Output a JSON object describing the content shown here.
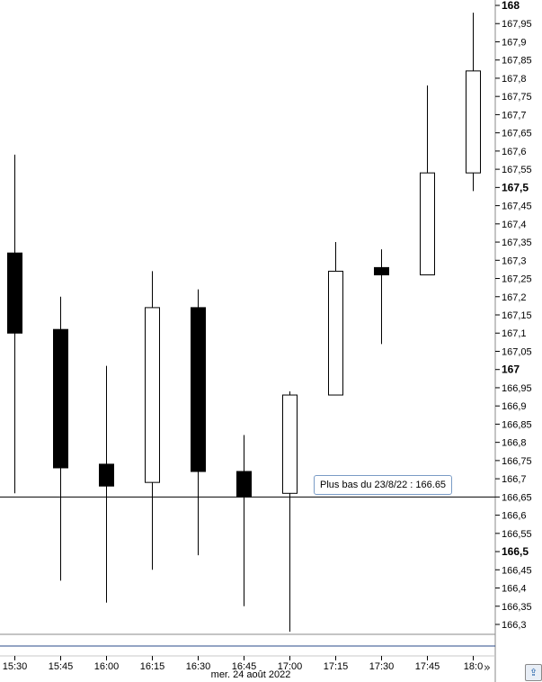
{
  "chart_data": {
    "type": "candlestick",
    "x": [
      "15:30",
      "15:45",
      "16:00",
      "16:15",
      "16:30",
      "16:45",
      "17:00",
      "17:15",
      "17:30",
      "17:45",
      "18:0"
    ],
    "date_label": "mer. 24 août 2022",
    "candles": [
      {
        "open": 167.32,
        "high": 167.59,
        "low": 166.66,
        "close": 167.1
      },
      {
        "open": 167.11,
        "high": 167.2,
        "low": 166.42,
        "close": 166.73
      },
      {
        "open": 166.74,
        "high": 167.01,
        "low": 166.36,
        "close": 166.68
      },
      {
        "open": 166.69,
        "high": 167.27,
        "low": 166.45,
        "close": 167.17
      },
      {
        "open": 167.17,
        "high": 167.22,
        "low": 166.49,
        "close": 166.72
      },
      {
        "open": 166.72,
        "high": 166.82,
        "low": 166.35,
        "close": 166.65
      },
      {
        "open": 166.66,
        "high": 166.94,
        "low": 166.28,
        "close": 166.93
      },
      {
        "open": 166.93,
        "high": 167.35,
        "low": 166.93,
        "close": 167.27
      },
      {
        "open": 167.28,
        "high": 167.33,
        "low": 167.07,
        "close": 167.26
      },
      {
        "open": 167.26,
        "high": 167.78,
        "low": 167.26,
        "close": 167.54
      },
      {
        "open": 167.54,
        "high": 167.98,
        "low": 167.49,
        "close": 167.82
      }
    ],
    "y_ticks": [
      "168",
      "167,95",
      "167,9",
      "167,85",
      "167,8",
      "167,75",
      "167,7",
      "167,65",
      "167,6",
      "167,55",
      "167,5",
      "167,45",
      "167,4",
      "167,35",
      "167,3",
      "167,25",
      "167,2",
      "167,15",
      "167,1",
      "167,05",
      "167",
      "166,95",
      "166,9",
      "166,85",
      "166,8",
      "166,75",
      "166,7",
      "166,65",
      "166,6",
      "166,55",
      "166,5",
      "166,45",
      "166,4",
      "166,35",
      "166,3"
    ],
    "y_bold_ticks": [
      "168",
      "167,5",
      "167",
      "166,5"
    ],
    "ylim": [
      166.28,
      168.0
    ],
    "reference_line": {
      "value": 166.65,
      "label": "Plus bas du 23/8/22 : 166.65"
    }
  },
  "controls": {
    "scroll_label": "»",
    "export_label": "⇪"
  }
}
